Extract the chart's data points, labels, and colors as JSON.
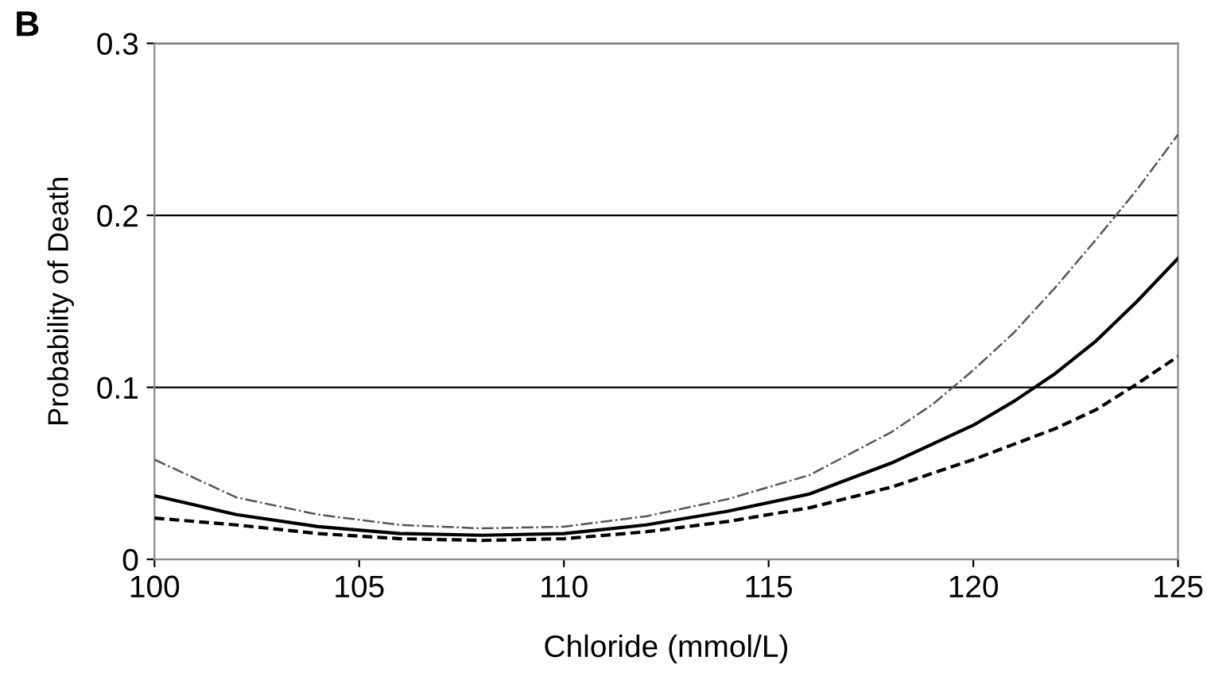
{
  "chart_data": {
    "type": "line",
    "xlabel": "Chloride (mmol/L)",
    "ylabel": "Probability of Death",
    "annotations": [
      "B"
    ],
    "xlim": [
      100,
      125
    ],
    "xticks": [
      100,
      105,
      110,
      115,
      120,
      125
    ],
    "ylim": [
      0,
      0.3
    ],
    "yticks": [
      0,
      0.1,
      0.2,
      0.3
    ],
    "grid": "y",
    "legend": false,
    "marker": "none",
    "series": [
      {
        "color": "#000000",
        "line_style": "solid",
        "x": [
          100,
          102,
          104,
          106,
          108,
          110,
          112,
          114,
          116,
          118,
          120,
          121,
          122,
          123,
          124,
          125
        ],
        "values": [
          0.037,
          0.026,
          0.019,
          0.015,
          0.014,
          0.015,
          0.02,
          0.028,
          0.038,
          0.056,
          0.078,
          0.092,
          0.108,
          0.127,
          0.15,
          0.175
        ]
      },
      {
        "color": "#555555",
        "line_style": "dashdot",
        "x": [
          100,
          102,
          104,
          106,
          108,
          110,
          112,
          114,
          116,
          118,
          119,
          120,
          121,
          122,
          123,
          124,
          125
        ],
        "values": [
          0.058,
          0.036,
          0.026,
          0.02,
          0.018,
          0.019,
          0.025,
          0.035,
          0.049,
          0.074,
          0.09,
          0.11,
          0.132,
          0.158,
          0.186,
          0.215,
          0.247
        ]
      },
      {
        "color": "#000000",
        "line_style": "dashed",
        "x": [
          100,
          102,
          104,
          106,
          108,
          110,
          112,
          114,
          116,
          118,
          120,
          122,
          123,
          124,
          125
        ],
        "values": [
          0.024,
          0.02,
          0.015,
          0.012,
          0.011,
          0.012,
          0.016,
          0.022,
          0.03,
          0.042,
          0.058,
          0.076,
          0.087,
          0.102,
          0.118
        ]
      }
    ]
  }
}
